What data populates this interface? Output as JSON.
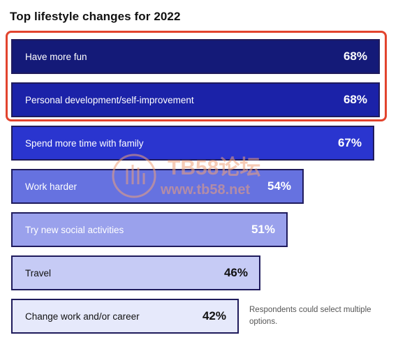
{
  "chart_data": {
    "type": "bar",
    "orientation": "horizontal",
    "title": "Top lifestyle changes for 2022",
    "categories": [
      "Have more fun",
      "Personal development/self-improvement",
      "Spend more time with family",
      "Work harder",
      "Try new social activities",
      "Travel",
      "Change work and/or career"
    ],
    "values": [
      68,
      68,
      67,
      54,
      51,
      46,
      42
    ],
    "value_labels": [
      "68%",
      "68%",
      "67%",
      "54%",
      "51%",
      "46%",
      "42%"
    ],
    "unit": "%",
    "xlim": [
      0,
      68
    ],
    "highlighted_categories": [
      "Have more fun",
      "Personal development/self-improvement"
    ],
    "note": "Respondents could select multiple options."
  },
  "colors": {
    "bar_fills": [
      "#141a78",
      "#1b22a8",
      "#2a35cf",
      "#6672e0",
      "#9aa1ec",
      "#c6cbf5",
      "#e6e9fb"
    ],
    "text_light": "#ffffff",
    "text_dark": "#111111",
    "highlight_border": "#e2442e"
  },
  "watermark": {
    "line1": "TB58论坛",
    "line2": "www.tb58.net"
  }
}
